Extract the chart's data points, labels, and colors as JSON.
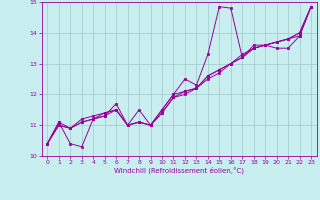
{
  "xlabel": "Windchill (Refroidissement éolien,°C)",
  "xlim": [
    -0.5,
    23.5
  ],
  "ylim": [
    10,
    15
  ],
  "yticks": [
    10,
    11,
    12,
    13,
    14,
    15
  ],
  "xticks": [
    0,
    1,
    2,
    3,
    4,
    5,
    6,
    7,
    8,
    9,
    10,
    11,
    12,
    13,
    14,
    15,
    16,
    17,
    18,
    19,
    20,
    21,
    22,
    23
  ],
  "bg_color": "#c8eef0",
  "line_color": "#990099",
  "grid_color": "#a0c8cc",
  "series": [
    [
      10.4,
      11.1,
      10.4,
      10.3,
      11.2,
      11.3,
      11.7,
      11.0,
      11.5,
      11.0,
      11.5,
      12.0,
      12.5,
      12.3,
      13.3,
      14.85,
      14.8,
      13.2,
      13.6,
      13.6,
      13.5,
      13.5,
      13.9,
      14.85
    ],
    [
      10.4,
      11.1,
      10.9,
      11.1,
      11.2,
      11.4,
      11.5,
      11.0,
      11.1,
      11.0,
      11.4,
      11.9,
      12.1,
      12.2,
      12.6,
      12.8,
      13.0,
      13.2,
      13.5,
      13.6,
      13.7,
      13.8,
      13.9,
      14.85
    ],
    [
      10.4,
      11.0,
      10.9,
      11.1,
      11.2,
      11.3,
      11.5,
      11.0,
      11.1,
      11.0,
      11.4,
      11.9,
      12.0,
      12.2,
      12.5,
      12.7,
      13.0,
      13.2,
      13.5,
      13.6,
      13.7,
      13.8,
      14.0,
      14.85
    ],
    [
      10.4,
      11.0,
      10.9,
      11.2,
      11.3,
      11.4,
      11.5,
      11.0,
      11.1,
      11.0,
      11.5,
      12.0,
      12.1,
      12.2,
      12.6,
      12.8,
      13.0,
      13.3,
      13.5,
      13.6,
      13.7,
      13.8,
      14.0,
      14.85
    ]
  ]
}
